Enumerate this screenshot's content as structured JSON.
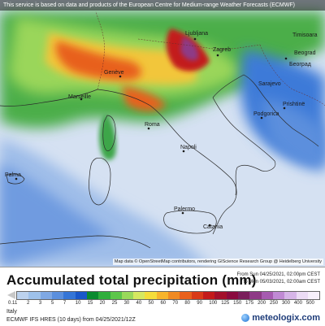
{
  "banner": "This service is based on data and products of the European Centre for Medium-range Weather Forecasts (ECMWF)",
  "attribution": "Map data © OpenStreetMap contributors, rendering GIScience Research Group @ Heidelberg University",
  "cities": [
    {
      "name": "Ljubljana"
    },
    {
      "name": "Zagreb"
    },
    {
      "name": "Timisoara"
    },
    {
      "name": "Београд"
    },
    {
      "name": "Genève"
    },
    {
      "name": "Marseille"
    },
    {
      "name": "Roma"
    },
    {
      "name": "Napoli"
    },
    {
      "name": "Podgorica"
    },
    {
      "name": "Prishtinë"
    },
    {
      "name": "Palma"
    },
    {
      "name": "Palermo"
    },
    {
      "name": "Catania"
    },
    {
      "name": "Sarajevo"
    },
    {
      "name": "Beograd"
    }
  ],
  "legend": {
    "title": "Accumulated total precipitation (mm)",
    "run_from": "From Sun 04/25/2021, 02:00pm CEST",
    "run_to": "to Mon 05/03/2021, 02:00am CEST",
    "first_tick": "0.1",
    "ticks": [
      "1",
      "2",
      "3",
      "5",
      "7",
      "10",
      "15",
      "20",
      "25",
      "30",
      "40",
      "50",
      "60",
      "70",
      "80",
      "90",
      "100",
      "125",
      "150",
      "175",
      "200",
      "250",
      "300",
      "400",
      "500"
    ],
    "colors": [
      "#bcd2ee",
      "#9ec1ea",
      "#7fa8e3",
      "#5b8fdd",
      "#3575d6",
      "#1a57c9",
      "#0a8a2f",
      "#2fae3c",
      "#5cc64a",
      "#99d95a",
      "#d6e860",
      "#f5dd3a",
      "#f7b42c",
      "#f08a23",
      "#e8601c",
      "#d93a18",
      "#c31a1a",
      "#a3102b",
      "#8a0b3f",
      "#7a1f5b",
      "#8e3a86",
      "#a65bb0",
      "#c08ad4",
      "#d6b5e8",
      "#ecdcf5",
      "#f7f0fb"
    ]
  },
  "footer": {
    "region": "Italy",
    "model": "ECMWF IFS HRES (10 days) from 04/25/2021/12Z",
    "brand": "meteologix.com"
  }
}
